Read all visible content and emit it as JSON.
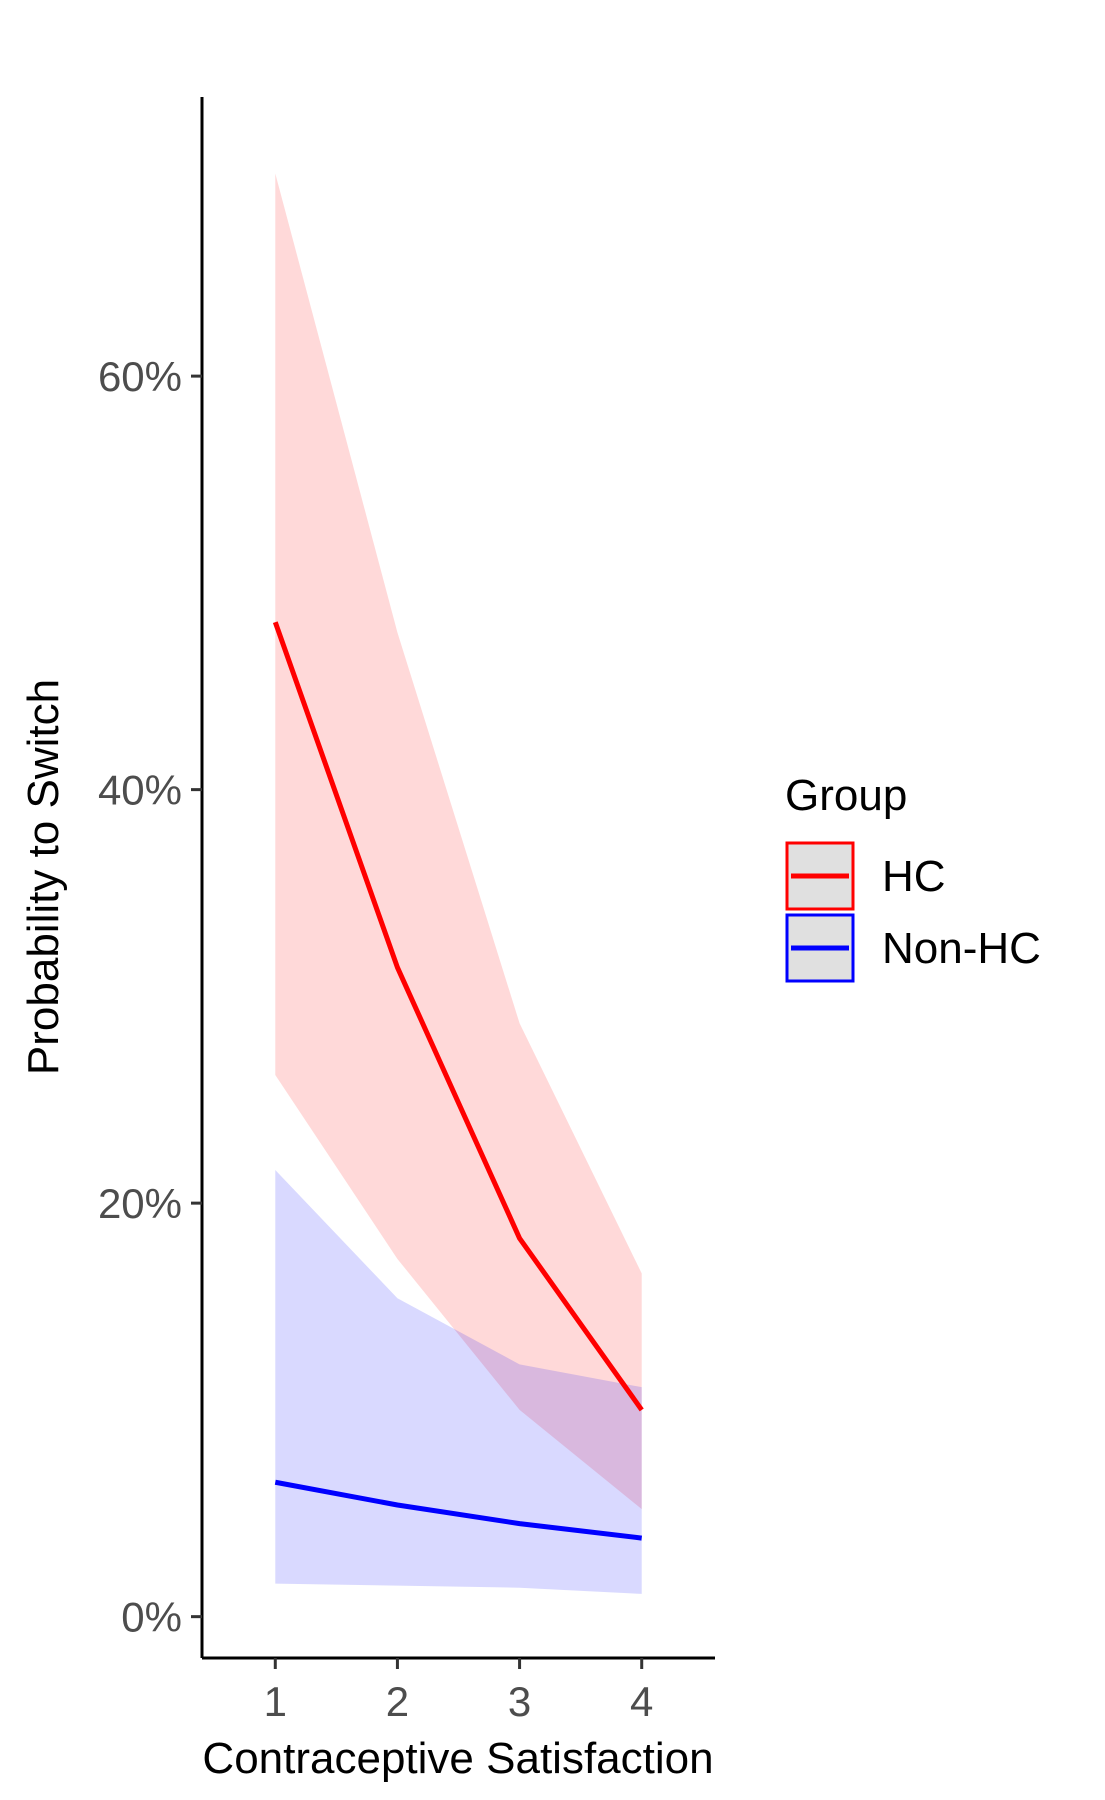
{
  "chart_data": {
    "type": "line",
    "xlabel": "Contraceptive Satisfaction",
    "ylabel": "Probability to Switch",
    "x": [
      1,
      2,
      3,
      4
    ],
    "x_ticks": [
      "1",
      "2",
      "3",
      "4"
    ],
    "xlim": [
      0.4,
      4.6
    ],
    "ylim": [
      -0.02,
      0.735
    ],
    "y_ticks": [
      {
        "value": 0.0,
        "label": "0%"
      },
      {
        "value": 0.2,
        "label": "20%"
      },
      {
        "value": 0.4,
        "label": "40%"
      },
      {
        "value": 0.6,
        "label": "60%"
      }
    ],
    "grid": false,
    "legend": {
      "title": "Group",
      "placement": "right"
    },
    "series": [
      {
        "name": "HC",
        "color": "#ff0000",
        "fill": "#ff0000",
        "fill_opacity": 0.15,
        "values": [
          0.481,
          0.314,
          0.183,
          0.1
        ],
        "lower": [
          0.262,
          0.173,
          0.1,
          0.052
        ],
        "upper": [
          0.698,
          0.476,
          0.287,
          0.166
        ]
      },
      {
        "name": "Non-HC",
        "color": "#0000ff",
        "fill": "#0000ff",
        "fill_opacity": 0.15,
        "values": [
          0.065,
          0.054,
          0.045,
          0.038
        ],
        "lower": [
          0.016,
          0.015,
          0.014,
          0.011
        ],
        "upper": [
          0.216,
          0.154,
          0.122,
          0.111
        ]
      }
    ]
  }
}
